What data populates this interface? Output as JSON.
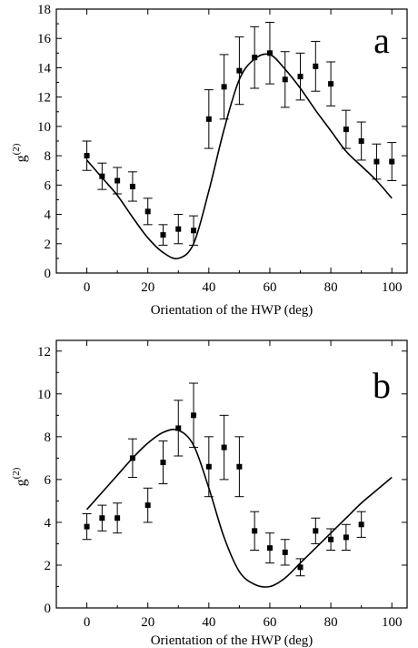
{
  "chart_data": [
    {
      "type": "scatter",
      "panel_label": "a",
      "xlabel": "Orientation of the HWP (deg)",
      "ylabel": "g",
      "ylabel_superscript": "(2)",
      "xlim": [
        -10,
        105
      ],
      "ylim": [
        0,
        18
      ],
      "xticks": [
        0,
        20,
        40,
        60,
        80,
        100
      ],
      "yticks": [
        0,
        2,
        4,
        6,
        8,
        10,
        12,
        14,
        16,
        18
      ],
      "grid": false,
      "series": [
        {
          "kind": "data-with-error-bars",
          "x": [
            0,
            5,
            10,
            15,
            20,
            25,
            30,
            35,
            40,
            45,
            50,
            55,
            60,
            65,
            70,
            75,
            80,
            85,
            90,
            95,
            100
          ],
          "y": [
            8.0,
            6.6,
            6.3,
            5.9,
            4.2,
            2.6,
            3.0,
            2.9,
            10.5,
            12.7,
            13.8,
            14.7,
            15.0,
            13.2,
            13.4,
            14.1,
            12.9,
            9.8,
            9.0,
            7.6,
            7.6
          ],
          "err": [
            1.0,
            0.9,
            0.9,
            1.0,
            0.9,
            0.7,
            1.0,
            1.0,
            2.0,
            2.2,
            2.3,
            2.1,
            2.1,
            1.9,
            1.6,
            1.7,
            1.5,
            1.3,
            1.3,
            1.2,
            1.3
          ]
        },
        {
          "kind": "fit-curve",
          "x": [
            0,
            5,
            10,
            15,
            20,
            25,
            30,
            35,
            40,
            45,
            50,
            55,
            60,
            65,
            70,
            75,
            80,
            85,
            90,
            95,
            100
          ],
          "y": [
            7.7,
            6.5,
            5.3,
            3.8,
            2.4,
            1.4,
            1.0,
            2.0,
            5.6,
            9.8,
            13.2,
            14.6,
            14.9,
            13.9,
            12.6,
            11.1,
            9.7,
            8.3,
            7.3,
            6.3,
            5.1
          ]
        }
      ]
    },
    {
      "type": "scatter",
      "panel_label": "b",
      "xlabel": "Orientation of the HWP (deg)",
      "ylabel": "g",
      "ylabel_superscript": "(2)",
      "xlim": [
        -10,
        105
      ],
      "ylim": [
        0,
        12.5
      ],
      "xticks": [
        0,
        20,
        40,
        60,
        80,
        100
      ],
      "yticks": [
        0,
        2,
        4,
        6,
        8,
        10,
        12
      ],
      "grid": false,
      "series": [
        {
          "kind": "data-with-error-bars",
          "x": [
            0,
            5,
            10,
            15,
            20,
            25,
            30,
            35,
            40,
            45,
            50,
            55,
            60,
            65,
            70,
            75,
            80,
            85,
            90
          ],
          "y": [
            3.8,
            4.2,
            4.2,
            7.0,
            4.8,
            6.8,
            8.4,
            9.0,
            6.6,
            7.5,
            6.6,
            3.6,
            2.8,
            2.6,
            1.9,
            3.6,
            3.2,
            3.3,
            3.9
          ],
          "err": [
            0.6,
            0.6,
            0.7,
            0.9,
            0.8,
            1.0,
            1.3,
            1.5,
            1.4,
            1.5,
            1.4,
            0.9,
            0.7,
            0.6,
            0.4,
            0.6,
            0.5,
            0.6,
            0.6
          ]
        },
        {
          "kind": "fit-curve",
          "x": [
            0,
            5,
            10,
            15,
            20,
            25,
            30,
            35,
            40,
            45,
            50,
            55,
            60,
            65,
            70,
            75,
            80,
            85,
            90,
            95,
            100
          ],
          "y": [
            4.6,
            5.4,
            6.2,
            7.0,
            7.7,
            8.2,
            8.3,
            7.6,
            5.6,
            3.3,
            1.7,
            1.1,
            1.0,
            1.4,
            2.1,
            2.8,
            3.5,
            4.2,
            4.9,
            5.5,
            6.1
          ]
        }
      ]
    }
  ]
}
